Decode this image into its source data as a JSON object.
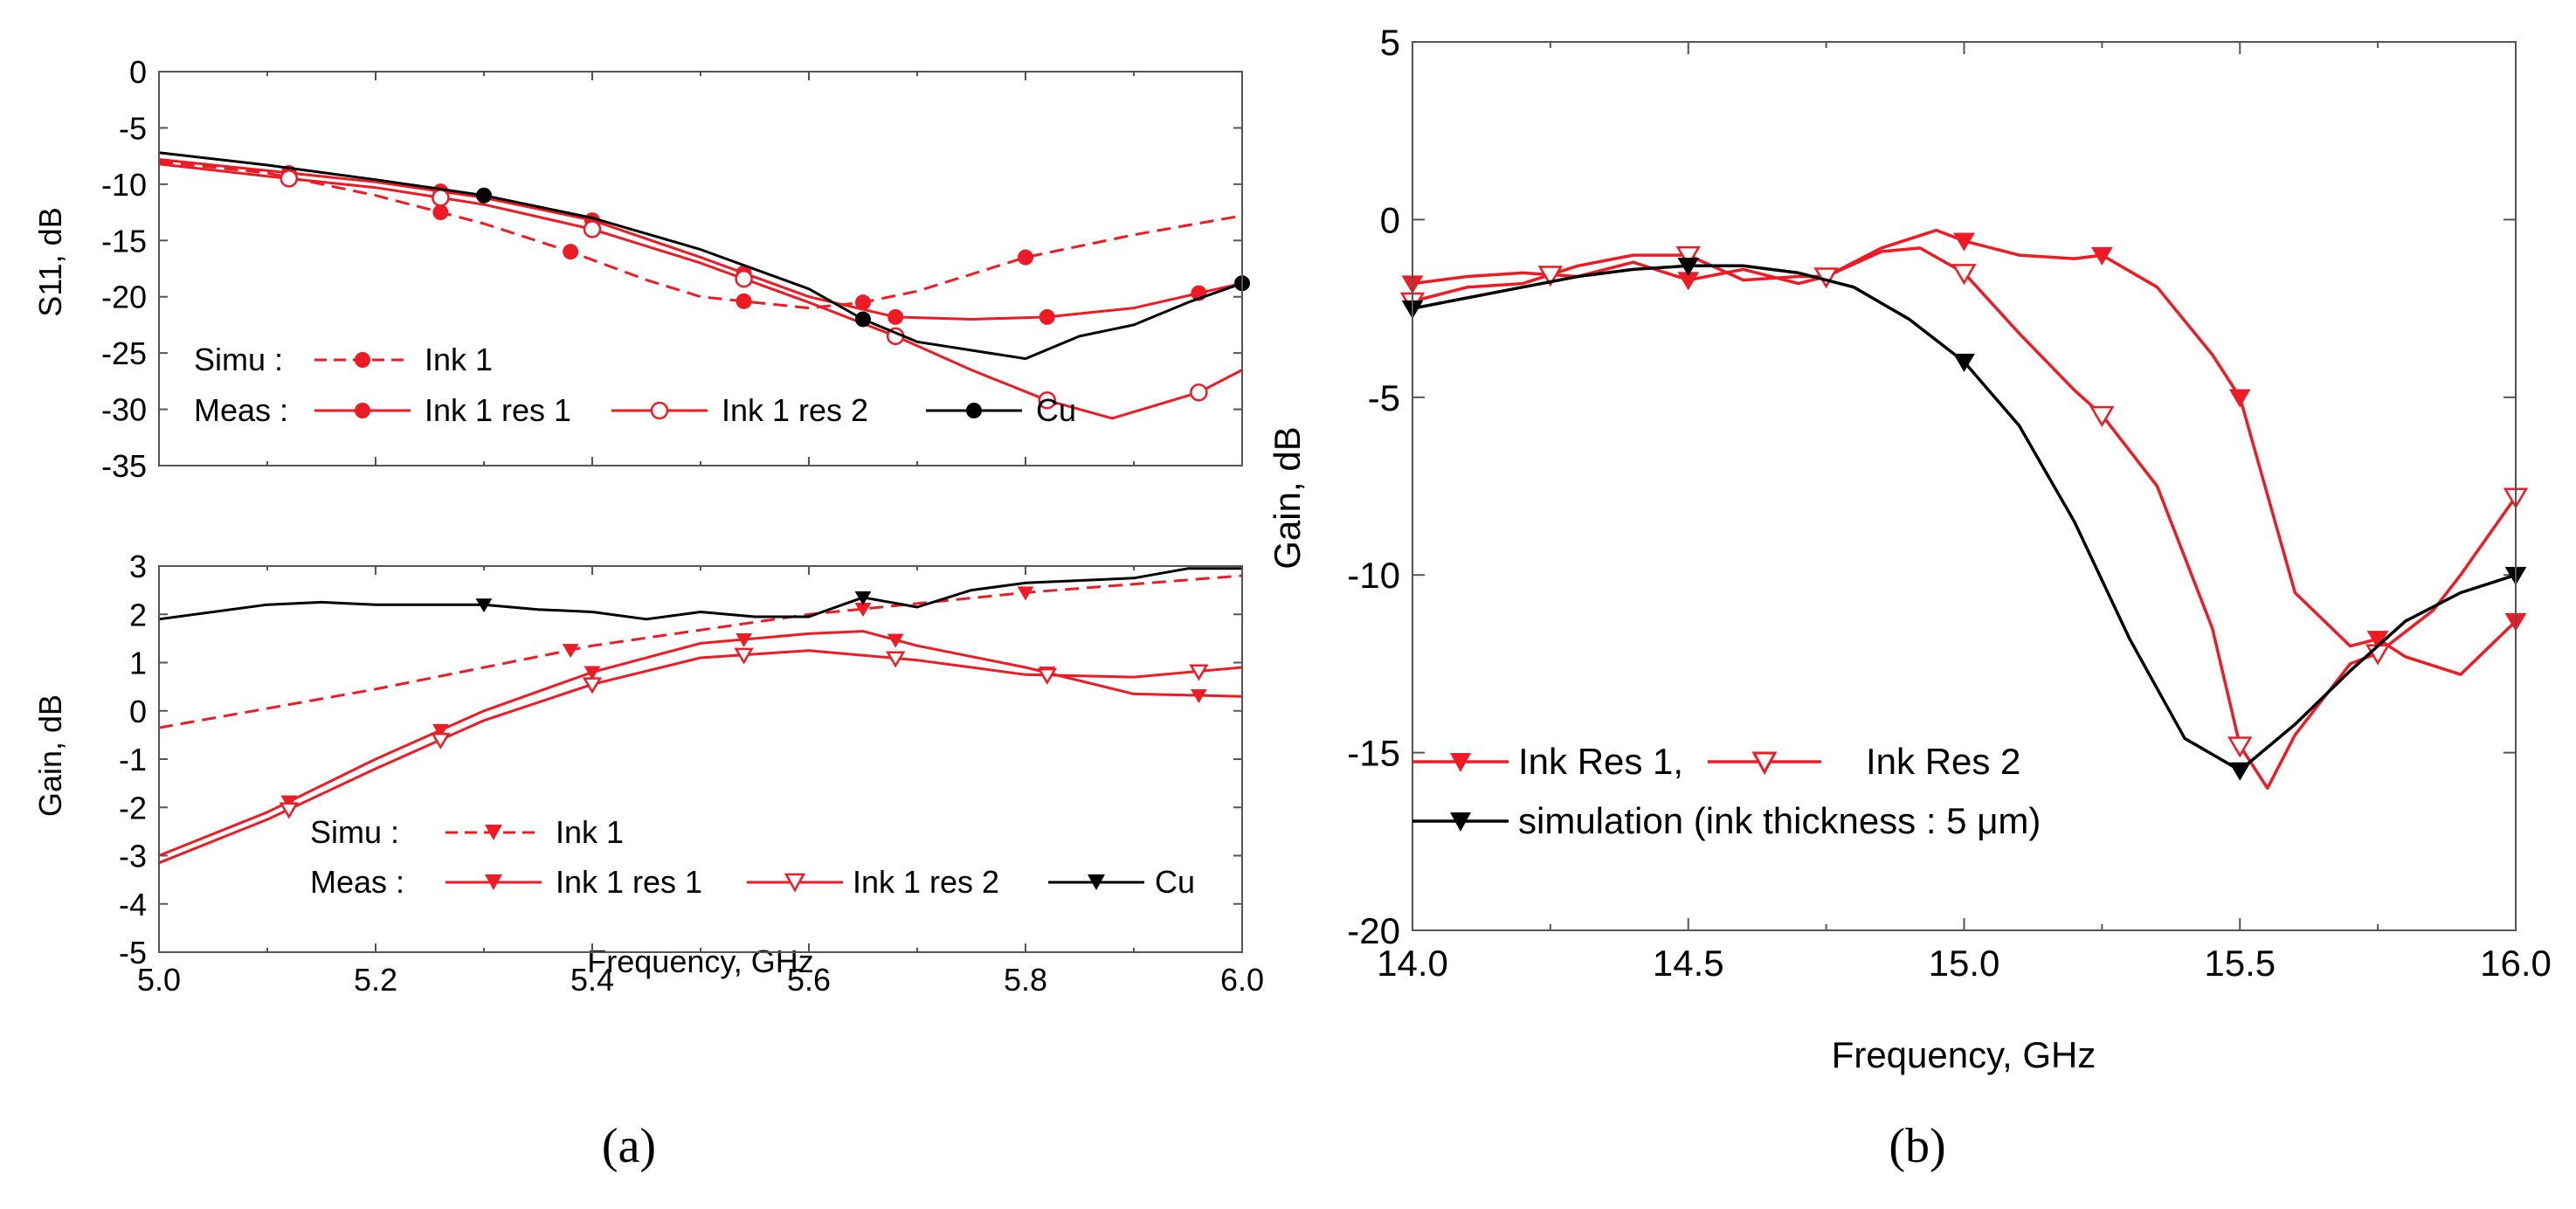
{
  "colors": {
    "red": "#ee1b24",
    "black": "#000000"
  },
  "chart_data": [
    {
      "id": "a_top",
      "type": "line",
      "xlabel": "",
      "ylabel": "S11, dB",
      "xlim": [
        5.0,
        6.0
      ],
      "ylim": [
        -35,
        0
      ],
      "xticks": [
        "5.0",
        "5.2",
        "5.4",
        "5.6",
        "5.8",
        "6.0"
      ],
      "yticks": [
        "0",
        "-5",
        "-10",
        "-15",
        "-20",
        "-25",
        "-30",
        "-35"
      ],
      "legend": {
        "simu_label": "Simu :",
        "meas_label": "Meas :",
        "entries": [
          "Ink 1",
          "Ink 1 res 1",
          "Ink 1 res 2",
          "Cu"
        ]
      },
      "series": [
        {
          "name": "Simu Ink 1",
          "color": "#ee1b24",
          "dash": true,
          "marker": "circle-filled",
          "x": [
            5.0,
            5.1,
            5.2,
            5.3,
            5.38,
            5.45,
            5.5,
            5.55,
            5.6,
            5.65,
            5.7,
            5.8,
            5.9,
            6.0
          ],
          "y": [
            -8,
            -9,
            -11,
            -13.5,
            -16,
            -18.5,
            -20,
            -20.5,
            -21,
            -20.5,
            -19.5,
            -16.5,
            -14.5,
            -12.8
          ],
          "marker_x": [
            5.12,
            5.26,
            5.38,
            5.54,
            5.65,
            5.8
          ]
        },
        {
          "name": "Meas Ink 1 res 1",
          "color": "#ee1b24",
          "dash": false,
          "marker": "circle-filled",
          "x": [
            5.0,
            5.1,
            5.2,
            5.3,
            5.4,
            5.5,
            5.6,
            5.68,
            5.75,
            5.82,
            5.9,
            6.0
          ],
          "y": [
            -7.8,
            -8.8,
            -9.8,
            -11.2,
            -13.2,
            -16.5,
            -20,
            -21.8,
            -22,
            -21.8,
            -21,
            -18.8
          ],
          "marker_x": [
            5.12,
            5.26,
            5.4,
            5.54,
            5.68,
            5.82,
            5.96
          ]
        },
        {
          "name": "Meas Ink 1 res 2",
          "color": "#ee1b24",
          "dash": false,
          "marker": "circle-open",
          "x": [
            5.0,
            5.1,
            5.2,
            5.3,
            5.4,
            5.5,
            5.6,
            5.68,
            5.75,
            5.82,
            5.88,
            5.96,
            6.0
          ],
          "y": [
            -8.2,
            -9.3,
            -10.3,
            -11.8,
            -14,
            -17,
            -20.5,
            -23.5,
            -26.5,
            -29.2,
            -30.8,
            -28.5,
            -26.5
          ],
          "marker_x": [
            5.12,
            5.26,
            5.4,
            5.54,
            5.68,
            5.82,
            5.96
          ]
        },
        {
          "name": "Meas Cu",
          "color": "#000000",
          "dash": false,
          "marker": "circle-filled",
          "x": [
            5.0,
            5.1,
            5.2,
            5.3,
            5.4,
            5.5,
            5.6,
            5.65,
            5.7,
            5.8,
            5.85,
            5.9,
            5.95,
            6.0
          ],
          "y": [
            -7.2,
            -8.3,
            -9.6,
            -11,
            -13,
            -15.8,
            -19.3,
            -22,
            -24,
            -25.5,
            -23.5,
            -22.5,
            -20.5,
            -18.8
          ],
          "marker_x": [
            5.3,
            5.65,
            6.0
          ]
        }
      ]
    },
    {
      "id": "a_bottom",
      "type": "line",
      "xlabel": "Frequency, GHz",
      "ylabel": "Gain, dB",
      "xlim": [
        5.0,
        6.0
      ],
      "ylim": [
        -5,
        3
      ],
      "xticks": [
        "5.0",
        "5.2",
        "5.4",
        "5.6",
        "5.8",
        "6.0"
      ],
      "yticks": [
        "3",
        "2",
        "1",
        "0",
        "-1",
        "-2",
        "-3",
        "-4",
        "-5"
      ],
      "legend": {
        "simu_label": "Simu :",
        "meas_label": "Meas :",
        "entries": [
          "Ink 1",
          "Ink 1 res 1",
          "Ink 1 res 2",
          "Cu"
        ]
      },
      "series": [
        {
          "name": "Simu Ink 1",
          "color": "#ee1b24",
          "dash": true,
          "marker": "tri-filled",
          "x": [
            5.0,
            5.2,
            5.4,
            5.6,
            5.8,
            6.0
          ],
          "y": [
            -0.35,
            0.45,
            1.35,
            2.0,
            2.45,
            2.8
          ],
          "marker_x": [
            5.38,
            5.65,
            5.8
          ]
        },
        {
          "name": "Meas Ink 1 res 1",
          "color": "#ee1b24",
          "dash": false,
          "marker": "tri-filled",
          "x": [
            5.0,
            5.1,
            5.2,
            5.3,
            5.4,
            5.5,
            5.6,
            5.65,
            5.7,
            5.8,
            5.9,
            6.0
          ],
          "y": [
            -3.0,
            -2.1,
            -1.0,
            0.0,
            0.8,
            1.4,
            1.6,
            1.65,
            1.35,
            0.9,
            0.35,
            0.3
          ],
          "marker_x": [
            5.12,
            5.26,
            5.4,
            5.54,
            5.68,
            5.82,
            5.96
          ]
        },
        {
          "name": "Meas Ink 1 res 2",
          "color": "#ee1b24",
          "dash": false,
          "marker": "tri-open",
          "x": [
            5.0,
            5.1,
            5.2,
            5.3,
            5.4,
            5.5,
            5.6,
            5.7,
            5.8,
            5.9,
            6.0
          ],
          "y": [
            -3.15,
            -2.25,
            -1.2,
            -0.2,
            0.55,
            1.1,
            1.25,
            1.05,
            0.75,
            0.7,
            0.9
          ],
          "marker_x": [
            5.12,
            5.26,
            5.4,
            5.54,
            5.68,
            5.82,
            5.96
          ]
        },
        {
          "name": "Meas Cu",
          "color": "#000000",
          "dash": false,
          "marker": "tri-filled",
          "x": [
            5.0,
            5.1,
            5.15,
            5.2,
            5.3,
            5.35,
            5.4,
            5.45,
            5.5,
            5.55,
            5.6,
            5.65,
            5.7,
            5.75,
            5.8,
            5.9,
            5.95,
            6.0
          ],
          "y": [
            1.9,
            2.2,
            2.25,
            2.2,
            2.2,
            2.1,
            2.05,
            1.9,
            2.05,
            1.95,
            1.95,
            2.35,
            2.15,
            2.5,
            2.65,
            2.75,
            2.95,
            2.95
          ],
          "marker_x": [
            5.3,
            5.65
          ]
        }
      ]
    },
    {
      "id": "b",
      "type": "line",
      "xlabel": "Frequency, GHz",
      "ylabel": "Gain, dB",
      "xlim": [
        14.0,
        16.0
      ],
      "ylim": [
        -20,
        5
      ],
      "xticks": [
        "14.0",
        "14.5",
        "15.0",
        "15.5",
        "16.0"
      ],
      "yticks": [
        "5",
        "0",
        "-5",
        "-10",
        "-15",
        "-20"
      ],
      "legend": {
        "entries": [
          "Ink Res 1,",
          "Ink Res 2",
          "simulation (ink thickness : 5  μm)"
        ]
      },
      "series": [
        {
          "name": "Ink Res 1",
          "color": "#ee1b24",
          "dash": false,
          "marker": "tri-filled",
          "x": [
            14.0,
            14.1,
            14.2,
            14.3,
            14.4,
            14.5,
            14.6,
            14.7,
            14.75,
            14.85,
            14.95,
            15.0,
            15.1,
            15.2,
            15.25,
            15.35,
            15.45,
            15.5,
            15.6,
            15.7,
            15.75,
            15.8,
            15.9,
            16.0
          ],
          "y": [
            -1.8,
            -1.6,
            -1.5,
            -1.6,
            -1.2,
            -1.7,
            -1.4,
            -1.8,
            -1.6,
            -0.8,
            -0.3,
            -0.6,
            -1.0,
            -1.1,
            -1.0,
            -1.9,
            -3.8,
            -5.0,
            -10.5,
            -12.0,
            -11.8,
            -12.3,
            -12.8,
            -11.3
          ],
          "marker_x": [
            14.0,
            14.25,
            14.5,
            14.75,
            15.0,
            15.25,
            15.5,
            15.75,
            16.0
          ]
        },
        {
          "name": "Ink Res 2",
          "color": "#ee1b24",
          "dash": false,
          "marker": "tri-open",
          "x": [
            14.0,
            14.1,
            14.2,
            14.3,
            14.4,
            14.5,
            14.6,
            14.7,
            14.75,
            14.85,
            14.92,
            15.0,
            15.1,
            15.2,
            15.25,
            15.35,
            15.45,
            15.5,
            15.55,
            15.6,
            15.7,
            15.75,
            15.85,
            15.9,
            16.0
          ],
          "y": [
            -2.3,
            -1.9,
            -1.8,
            -1.3,
            -1.0,
            -1.0,
            -1.7,
            -1.6,
            -1.6,
            -0.9,
            -0.8,
            -1.5,
            -3.2,
            -4.8,
            -5.5,
            -7.5,
            -11.5,
            -14.8,
            -16.0,
            -14.5,
            -12.5,
            -12.2,
            -11.0,
            -10.0,
            -7.8
          ],
          "marker_x": [
            14.0,
            14.25,
            14.5,
            14.75,
            15.0,
            15.25,
            15.5,
            15.75,
            16.0
          ]
        },
        {
          "name": "simulation (ink thickness : 5 μm)",
          "color": "#000000",
          "dash": false,
          "marker": "tri-filled",
          "x": [
            14.0,
            14.1,
            14.2,
            14.3,
            14.4,
            14.5,
            14.6,
            14.7,
            14.8,
            14.9,
            15.0,
            15.1,
            15.2,
            15.3,
            15.4,
            15.5,
            15.6,
            15.7,
            15.8,
            15.9,
            16.0
          ],
          "y": [
            -2.5,
            -2.2,
            -1.9,
            -1.6,
            -1.4,
            -1.3,
            -1.3,
            -1.5,
            -1.9,
            -2.8,
            -4.0,
            -5.8,
            -8.5,
            -11.8,
            -14.6,
            -15.5,
            -14.2,
            -12.7,
            -11.3,
            -10.5,
            -10.0
          ],
          "marker_x": [
            14.0,
            14.5,
            15.0,
            15.5,
            16.0
          ]
        }
      ]
    }
  ],
  "panel_labels": {
    "a": "(a)",
    "b": "(b)"
  }
}
